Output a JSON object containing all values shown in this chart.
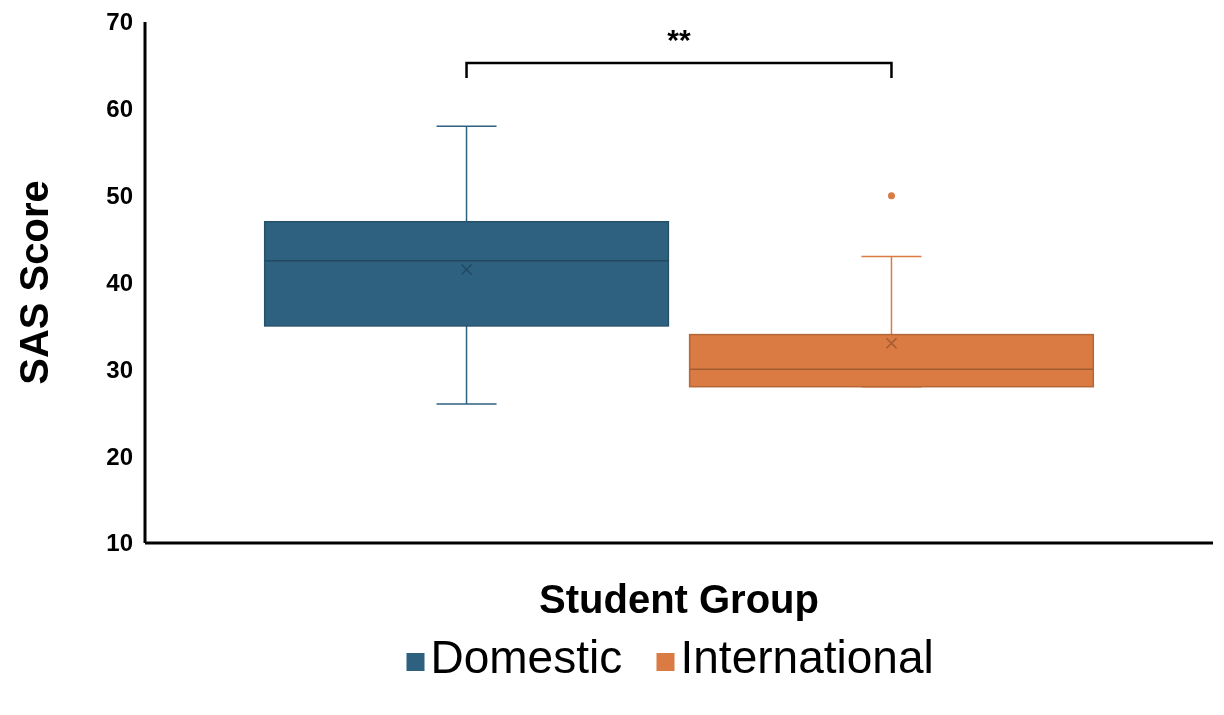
{
  "chart_data": {
    "type": "box",
    "xlabel": "Student Group",
    "ylabel": "SAS Score",
    "categories": [
      null
    ],
    "series": [
      {
        "name": "Domestic",
        "color": "#2e6180",
        "boxes": [
          {
            "low": 26,
            "q1": 35,
            "median": 42.5,
            "q3": 47,
            "high": 58,
            "mean": 41.5
          }
        ]
      },
      {
        "name": "International",
        "color": "#d97b42",
        "boxes": [
          {
            "low": 28,
            "q1": 28,
            "median": 30,
            "q3": 34,
            "high": 43,
            "mean": 33,
            "outliers": [
              50
            ]
          }
        ]
      }
    ],
    "ylim": [
      10,
      70
    ],
    "yticks": [
      10,
      20,
      30,
      40,
      50,
      60,
      70
    ],
    "grid": false,
    "legend": "bottom",
    "annotations": [
      "**"
    ]
  }
}
